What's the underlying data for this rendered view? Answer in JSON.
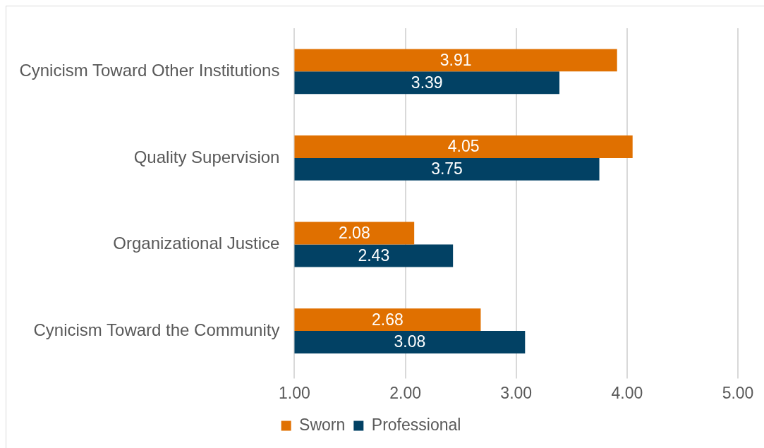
{
  "chart_data": {
    "type": "bar",
    "orientation": "horizontal",
    "categories": [
      "Cynicism Toward Other Institutions",
      "Quality Supervision",
      "Organizational Justice",
      "Cynicism Toward the Community"
    ],
    "series": [
      {
        "name": "Sworn",
        "color": "#e07000",
        "values": [
          3.91,
          4.05,
          2.08,
          2.68
        ]
      },
      {
        "name": "Professional",
        "color": "#024164",
        "values": [
          3.39,
          3.75,
          2.43,
          3.08
        ]
      }
    ],
    "xlim": [
      1,
      5
    ],
    "xticks": [
      {
        "value": 1,
        "label": "1.00"
      },
      {
        "value": 2,
        "label": "2.00"
      },
      {
        "value": 3,
        "label": "3.00"
      },
      {
        "value": 4,
        "label": "4.00"
      },
      {
        "value": 5,
        "label": "5.00"
      }
    ],
    "grid": "x",
    "legend": "bottom",
    "data_labels": true
  }
}
